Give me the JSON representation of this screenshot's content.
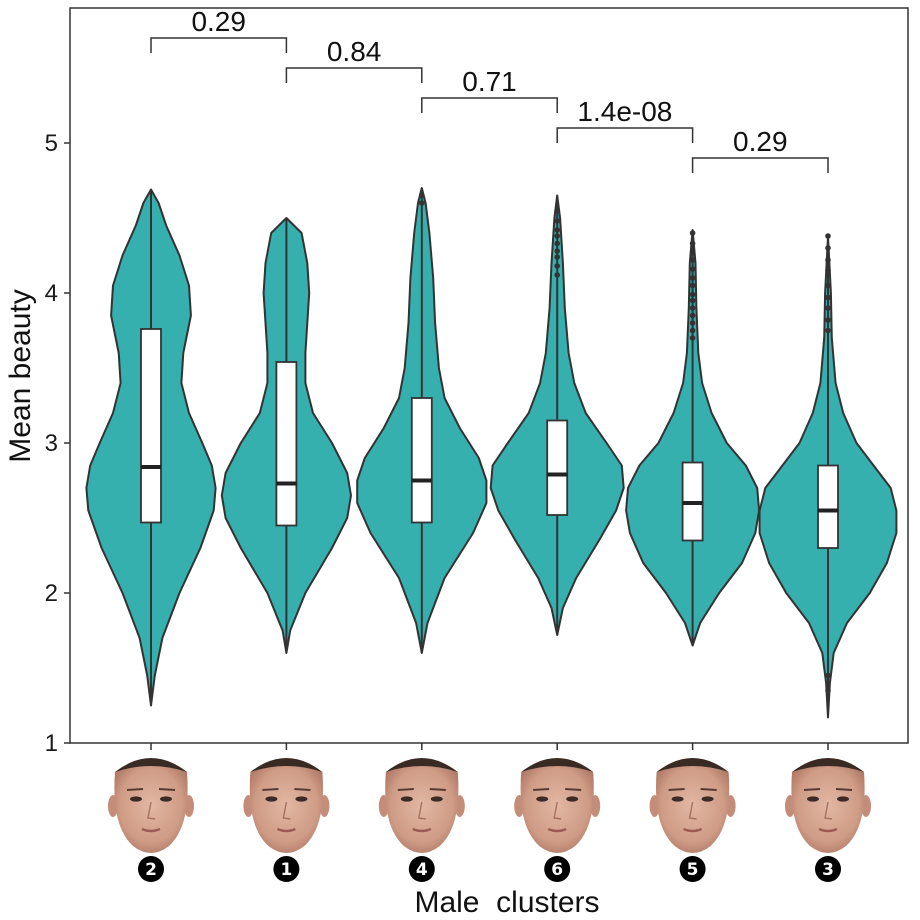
{
  "chart_data": {
    "type": "violin",
    "xlabel": "Male  clusters",
    "ylabel": "Mean beauty",
    "ylim": [
      1,
      5.9
    ],
    "yticks": [
      1,
      2,
      3,
      4,
      5
    ],
    "grid": false,
    "violin_color": "#36AFAF",
    "groups": [
      {
        "label": "2",
        "min": 1.25,
        "q1": 2.47,
        "median": 2.84,
        "q3": 3.76,
        "max": 4.69,
        "density": [
          [
            1.25,
            0
          ],
          [
            1.45,
            0.02
          ],
          [
            1.7,
            0.06
          ],
          [
            2.0,
            0.15
          ],
          [
            2.3,
            0.26
          ],
          [
            2.55,
            0.33
          ],
          [
            2.7,
            0.34
          ],
          [
            2.85,
            0.32
          ],
          [
            3.0,
            0.27
          ],
          [
            3.2,
            0.2
          ],
          [
            3.4,
            0.16
          ],
          [
            3.6,
            0.17
          ],
          [
            3.85,
            0.21
          ],
          [
            4.05,
            0.2
          ],
          [
            4.25,
            0.15
          ],
          [
            4.45,
            0.08
          ],
          [
            4.6,
            0.04
          ],
          [
            4.69,
            0
          ]
        ],
        "outliers": []
      },
      {
        "label": "1",
        "min": 1.6,
        "q1": 2.45,
        "median": 2.73,
        "q3": 3.54,
        "max": 4.5,
        "density": [
          [
            1.6,
            0
          ],
          [
            1.75,
            0.02
          ],
          [
            2.0,
            0.1
          ],
          [
            2.3,
            0.24
          ],
          [
            2.5,
            0.32
          ],
          [
            2.65,
            0.34
          ],
          [
            2.8,
            0.32
          ],
          [
            3.0,
            0.24
          ],
          [
            3.2,
            0.14
          ],
          [
            3.4,
            0.1
          ],
          [
            3.6,
            0.1
          ],
          [
            3.8,
            0.11
          ],
          [
            4.0,
            0.12
          ],
          [
            4.2,
            0.11
          ],
          [
            4.4,
            0.08
          ],
          [
            4.5,
            0
          ]
        ],
        "outliers": []
      },
      {
        "label": "4",
        "min": 1.6,
        "q1": 2.47,
        "median": 2.75,
        "q3": 3.3,
        "max": 4.7,
        "density": [
          [
            1.6,
            0
          ],
          [
            1.8,
            0.03
          ],
          [
            2.1,
            0.12
          ],
          [
            2.4,
            0.27
          ],
          [
            2.6,
            0.34
          ],
          [
            2.75,
            0.34
          ],
          [
            2.9,
            0.3
          ],
          [
            3.1,
            0.2
          ],
          [
            3.3,
            0.12
          ],
          [
            3.5,
            0.09
          ],
          [
            3.8,
            0.07
          ],
          [
            4.1,
            0.06
          ],
          [
            4.4,
            0.04
          ],
          [
            4.6,
            0.02
          ],
          [
            4.7,
            0
          ]
        ],
        "outliers": [
          4.6,
          4.65
        ]
      },
      {
        "label": "6",
        "min": 1.72,
        "q1": 2.52,
        "median": 2.79,
        "q3": 3.15,
        "max": 4.65,
        "density": [
          [
            1.72,
            0
          ],
          [
            1.9,
            0.03
          ],
          [
            2.1,
            0.1
          ],
          [
            2.35,
            0.22
          ],
          [
            2.55,
            0.31
          ],
          [
            2.7,
            0.35
          ],
          [
            2.85,
            0.34
          ],
          [
            3.0,
            0.26
          ],
          [
            3.2,
            0.15
          ],
          [
            3.4,
            0.09
          ],
          [
            3.6,
            0.06
          ],
          [
            3.9,
            0.04
          ],
          [
            4.2,
            0.03
          ],
          [
            4.5,
            0.015
          ],
          [
            4.65,
            0
          ]
        ],
        "outliers": [
          4.55,
          4.48,
          4.42,
          4.38,
          4.33,
          4.28,
          4.24,
          4.18,
          4.12
        ]
      },
      {
        "label": "5",
        "min": 1.65,
        "q1": 2.35,
        "median": 2.6,
        "q3": 2.87,
        "max": 4.42,
        "density": [
          [
            1.65,
            0
          ],
          [
            1.8,
            0.04
          ],
          [
            2.0,
            0.14
          ],
          [
            2.2,
            0.26
          ],
          [
            2.4,
            0.33
          ],
          [
            2.55,
            0.35
          ],
          [
            2.7,
            0.34
          ],
          [
            2.85,
            0.28
          ],
          [
            3.0,
            0.18
          ],
          [
            3.2,
            0.1
          ],
          [
            3.4,
            0.05
          ],
          [
            3.6,
            0.03
          ],
          [
            3.9,
            0.02
          ],
          [
            4.2,
            0.015
          ],
          [
            4.42,
            0
          ]
        ],
        "outliers": [
          4.4,
          4.33,
          4.27,
          4.22,
          4.16,
          4.1,
          4.05,
          3.99,
          3.95,
          3.9,
          3.85,
          3.8,
          3.75,
          3.7
        ]
      },
      {
        "label": "3",
        "min": 1.17,
        "q1": 2.3,
        "median": 2.55,
        "q3": 2.85,
        "max": 4.38,
        "density": [
          [
            1.17,
            0
          ],
          [
            1.4,
            0.01
          ],
          [
            1.6,
            0.03
          ],
          [
            1.8,
            0.1
          ],
          [
            2.0,
            0.22
          ],
          [
            2.2,
            0.31
          ],
          [
            2.4,
            0.36
          ],
          [
            2.55,
            0.36
          ],
          [
            2.7,
            0.33
          ],
          [
            2.85,
            0.24
          ],
          [
            3.0,
            0.15
          ],
          [
            3.2,
            0.08
          ],
          [
            3.4,
            0.04
          ],
          [
            3.7,
            0.02
          ],
          [
            4.0,
            0.015
          ],
          [
            4.38,
            0
          ]
        ],
        "outliers": [
          4.38,
          4.3,
          4.22,
          4.15,
          4.05,
          3.97,
          3.9,
          3.82,
          3.75,
          1.45,
          1.35
        ]
      }
    ],
    "comparisons": [
      {
        "groups": [
          0,
          1
        ],
        "label": "0.29",
        "y": 5.7
      },
      {
        "groups": [
          1,
          2
        ],
        "label": "0.84",
        "y": 5.5
      },
      {
        "groups": [
          2,
          3
        ],
        "label": "0.71",
        "y": 5.3
      },
      {
        "groups": [
          3,
          4
        ],
        "label": "1.4e-08",
        "y": 5.1
      },
      {
        "groups": [
          4,
          5
        ],
        "label": "0.29",
        "y": 4.9
      }
    ]
  }
}
